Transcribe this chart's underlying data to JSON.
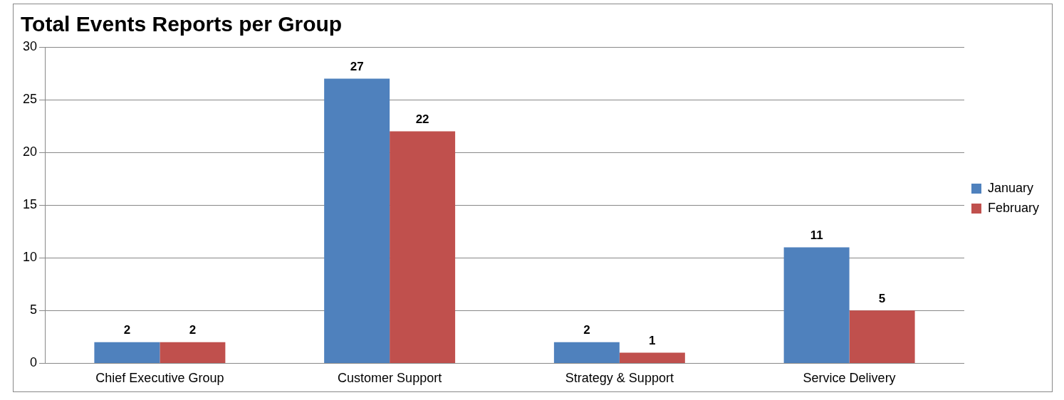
{
  "chart_data": {
    "type": "bar",
    "title": "Total Events Reports per Group",
    "categories": [
      "Chief Executive Group",
      "Customer Support",
      "Strategy & Support",
      "Service Delivery"
    ],
    "series": [
      {
        "name": "January",
        "color": "#4f81bd",
        "values": [
          2,
          27,
          2,
          11
        ]
      },
      {
        "name": "February",
        "color": "#c0504d",
        "values": [
          2,
          22,
          1,
          5
        ]
      }
    ],
    "ylim": [
      0,
      30
    ],
    "yticks": [
      0,
      5,
      10,
      15,
      20,
      25,
      30
    ],
    "grid": "y",
    "legend": "right",
    "data_labels": true
  }
}
